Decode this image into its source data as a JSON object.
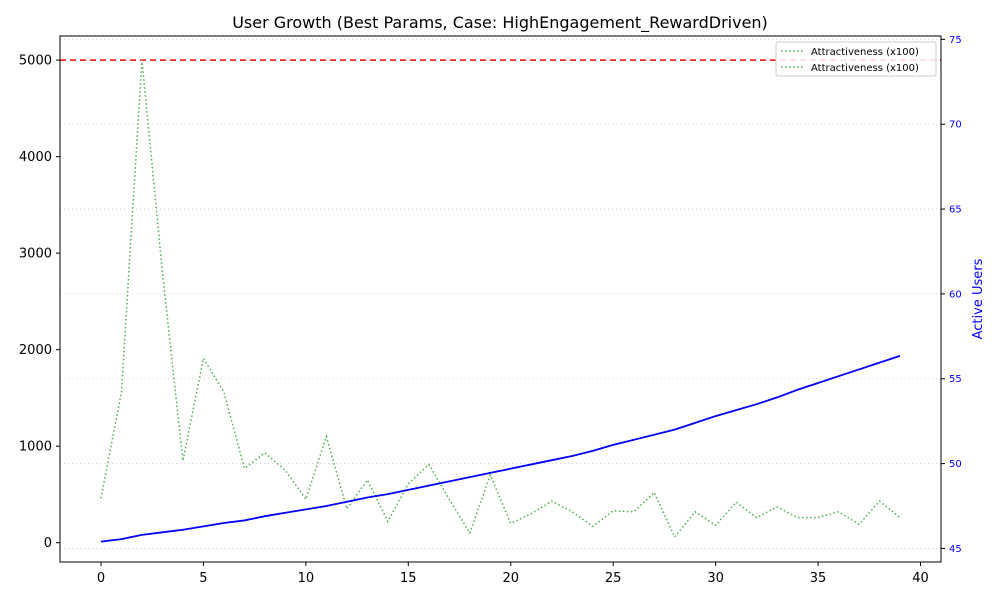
{
  "chart_data": {
    "type": "line",
    "title": "User Growth (Best Params, Case: HighEngagement_RewardDriven)",
    "xlabel": "",
    "ylabel_left": "",
    "ylabel_right": "Active Users",
    "xlim": [
      -2,
      41
    ],
    "ylim_left": [
      -200,
      5250
    ],
    "ylim_right": [
      44.2,
      75.2
    ],
    "x_ticks": [
      0,
      5,
      10,
      15,
      20,
      25,
      30,
      35,
      40
    ],
    "y_left_ticks": [
      0,
      1000,
      2000,
      3000,
      4000,
      5000
    ],
    "y_right_ticks": [
      45,
      50,
      55,
      60,
      65,
      70,
      75
    ],
    "reference_line": {
      "axis": "left",
      "y": 5000,
      "color": "#ff0000",
      "style": "dashed"
    },
    "grid": {
      "axis": "y-right",
      "style": "dotted"
    },
    "legend_placement": "top-right",
    "legend": [
      "Attractiveness (x100)",
      "Attractiveness (x100)"
    ],
    "series": [
      {
        "name": "Attractiveness (x100)",
        "axis": "left",
        "color": "#4caf50",
        "style": "dotted",
        "x": [
          0,
          1,
          2,
          3,
          4,
          5,
          6,
          7,
          8,
          9,
          10,
          11,
          12,
          13,
          14,
          15,
          16,
          17,
          18,
          19,
          20,
          21,
          22,
          23,
          24,
          25,
          26,
          27,
          28,
          29,
          30,
          31,
          32,
          33,
          34,
          35,
          36,
          37,
          38,
          39
        ],
        "values": [
          460,
          1560,
          5000,
          2800,
          850,
          1910,
          1560,
          770,
          930,
          750,
          450,
          1100,
          350,
          650,
          220,
          610,
          810,
          450,
          100,
          700,
          200,
          300,
          430,
          320,
          170,
          330,
          320,
          520,
          60,
          320,
          180,
          420,
          260,
          370,
          260,
          260,
          320,
          190,
          430,
          260
        ]
      },
      {
        "name": "",
        "axis": "right",
        "color": "#0000ff",
        "style": "solid",
        "x": [
          0,
          1,
          2,
          3,
          4,
          5,
          6,
          7,
          8,
          9,
          10,
          11,
          12,
          13,
          14,
          15,
          16,
          17,
          18,
          19,
          20,
          21,
          22,
          23,
          24,
          25,
          26,
          27,
          28,
          29,
          30,
          31,
          32,
          33,
          34,
          35,
          36,
          37,
          38,
          39
        ],
        "values": [
          45.4,
          45.55,
          45.8,
          45.95,
          46.1,
          46.3,
          46.5,
          46.65,
          46.9,
          47.1,
          47.3,
          47.5,
          47.75,
          48.0,
          48.2,
          48.45,
          48.7,
          48.95,
          49.2,
          49.45,
          49.7,
          49.95,
          50.2,
          50.45,
          50.75,
          51.1,
          51.4,
          51.7,
          52.0,
          52.4,
          52.8,
          53.15,
          53.5,
          53.9,
          54.35,
          54.75,
          55.15,
          55.55,
          55.95,
          56.35
        ]
      }
    ]
  }
}
